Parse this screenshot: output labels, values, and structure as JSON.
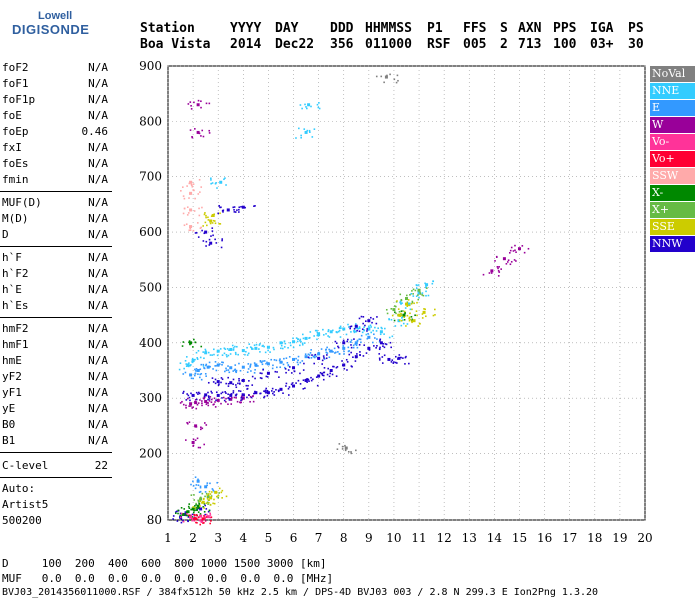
{
  "logo": {
    "top": "Lowell",
    "main": "DIGISONDE"
  },
  "header": {
    "labels": [
      "Station",
      "YYYY",
      "DAY",
      "DDD",
      "HHMMSS",
      "P1",
      "FFS",
      "S",
      "AXN",
      "PPS",
      "IGA",
      "PS"
    ],
    "values": [
      "Boa Vista",
      "2014",
      "Dec22",
      "356",
      "011000",
      "RSF",
      "005",
      "2",
      "713",
      "100",
      "03+",
      "30"
    ]
  },
  "params": {
    "group1": [
      {
        "name": "foF2",
        "value": "N/A"
      },
      {
        "name": "foF1",
        "value": "N/A"
      },
      {
        "name": "foF1p",
        "value": "N/A"
      },
      {
        "name": "foE",
        "value": "N/A"
      },
      {
        "name": "foEp",
        "value": "0.46"
      },
      {
        "name": "fxI",
        "value": "N/A"
      },
      {
        "name": "foEs",
        "value": "N/A"
      },
      {
        "name": "fmin",
        "value": "N/A"
      }
    ],
    "group2": [
      {
        "name": "MUF(D)",
        "value": "N/A"
      },
      {
        "name": "M(D)",
        "value": "N/A"
      },
      {
        "name": "D",
        "value": "N/A"
      }
    ],
    "group3": [
      {
        "name": "h`F",
        "value": "N/A"
      },
      {
        "name": "h`F2",
        "value": "N/A"
      },
      {
        "name": "h`E",
        "value": "N/A"
      },
      {
        "name": "h`Es",
        "value": "N/A"
      }
    ],
    "group4": [
      {
        "name": "hmF2",
        "value": "N/A"
      },
      {
        "name": "hmF1",
        "value": "N/A"
      },
      {
        "name": "hmE",
        "value": "N/A"
      },
      {
        "name": "yF2",
        "value": "N/A"
      },
      {
        "name": "yF1",
        "value": "N/A"
      },
      {
        "name": "yE",
        "value": "N/A"
      },
      {
        "name": "B0",
        "value": "N/A"
      },
      {
        "name": "B1",
        "value": "N/A"
      }
    ],
    "clevel": {
      "name": "C-level",
      "value": "22"
    },
    "auto": [
      "Auto:",
      "Artist5",
      "500200"
    ]
  },
  "legend": [
    {
      "label": "NoVal",
      "color": "#808080"
    },
    {
      "label": "NNE",
      "color": "#33ccff"
    },
    {
      "label": "E",
      "color": "#3399ff"
    },
    {
      "label": "W",
      "color": "#990099"
    },
    {
      "label": "Vo-",
      "color": "#ff3399"
    },
    {
      "label": "Vo+",
      "color": "#ff0033"
    },
    {
      "label": "SSW",
      "color": "#ffaaaa"
    },
    {
      "label": "X-",
      "color": "#008800"
    },
    {
      "label": "X+",
      "color": "#66bb44"
    },
    {
      "label": "SSE",
      "color": "#cccc00"
    },
    {
      "label": "NNW",
      "color": "#2200cc"
    }
  ],
  "chart_data": {
    "type": "scatter",
    "xlim": [
      1,
      20
    ],
    "ylim": [
      80,
      900
    ],
    "xticks": [
      1,
      2,
      3,
      4,
      5,
      6,
      7,
      8,
      9,
      10,
      11,
      12,
      13,
      14,
      15,
      16,
      17,
      18,
      19,
      20
    ],
    "yticks": [
      80,
      200,
      300,
      400,
      500,
      600,
      700,
      800,
      900
    ],
    "series": [
      {
        "name": "NNE",
        "points": [
          [
            1.8,
            360
          ],
          [
            2.0,
            368
          ],
          [
            2.5,
            382
          ],
          [
            3.0,
            385
          ],
          [
            3.5,
            388
          ],
          [
            4.0,
            386
          ],
          [
            4.5,
            390
          ],
          [
            5.0,
            392
          ],
          [
            5.5,
            400
          ],
          [
            6.0,
            402
          ],
          [
            6.5,
            408
          ],
          [
            7.0,
            415
          ],
          [
            7.5,
            420
          ],
          [
            8.0,
            425
          ],
          [
            8.5,
            428
          ],
          [
            9.0,
            425
          ],
          [
            9.5,
            420
          ],
          [
            10.2,
            440
          ],
          [
            10.6,
            470
          ],
          [
            11.0,
            490
          ],
          [
            11.3,
            505
          ],
          [
            6.6,
            830
          ],
          [
            6.5,
            780
          ],
          [
            3.1,
            690
          ]
        ]
      },
      {
        "name": "E",
        "points": [
          [
            1.9,
            342
          ],
          [
            2.2,
            350
          ],
          [
            2.6,
            356
          ],
          [
            3.0,
            360
          ],
          [
            3.5,
            355
          ],
          [
            4.0,
            356
          ],
          [
            4.5,
            360
          ],
          [
            5.0,
            362
          ],
          [
            5.5,
            365
          ],
          [
            6.0,
            370
          ],
          [
            6.5,
            375
          ],
          [
            7.0,
            380
          ],
          [
            7.5,
            385
          ],
          [
            8.0,
            390
          ],
          [
            8.5,
            400
          ],
          [
            9.0,
            410
          ],
          [
            2.2,
            150
          ],
          [
            2.5,
            140
          ]
        ]
      },
      {
        "name": "W",
        "points": [
          [
            1.9,
            290
          ],
          [
            2.1,
            292
          ],
          [
            2.5,
            294
          ],
          [
            3.0,
            296
          ],
          [
            3.5,
            298
          ],
          [
            4.0,
            300
          ],
          [
            2.2,
            830
          ],
          [
            2.2,
            780
          ],
          [
            2.1,
            250
          ],
          [
            2.0,
            220
          ],
          [
            13.9,
            530
          ],
          [
            14.4,
            552
          ],
          [
            15.0,
            570
          ]
        ]
      },
      {
        "name": "NNW",
        "points": [
          [
            2.0,
            305
          ],
          [
            2.5,
            306
          ],
          [
            3.0,
            305
          ],
          [
            3.5,
            305
          ],
          [
            4.0,
            306
          ],
          [
            4.5,
            310
          ],
          [
            5.0,
            310
          ],
          [
            5.5,
            316
          ],
          [
            6.0,
            322
          ],
          [
            6.5,
            332
          ],
          [
            7.0,
            340
          ],
          [
            7.5,
            350
          ],
          [
            8.0,
            360
          ],
          [
            8.5,
            375
          ],
          [
            9.0,
            390
          ],
          [
            9.5,
            400
          ],
          [
            9.8,
            370
          ],
          [
            10.2,
            372
          ],
          [
            3.0,
            330
          ],
          [
            3.5,
            328
          ],
          [
            4.0,
            332
          ],
          [
            5.0,
            345
          ],
          [
            6.0,
            355
          ],
          [
            7.0,
            372
          ],
          [
            8.0,
            400
          ],
          [
            8.5,
            430
          ],
          [
            9.0,
            440
          ],
          [
            2.3,
            100
          ],
          [
            1.7,
            90
          ],
          [
            1.5,
            85
          ],
          [
            2.5,
            600
          ],
          [
            3.4,
            640
          ],
          [
            4.0,
            645
          ],
          [
            2.7,
            580
          ]
        ]
      },
      {
        "name": "X-",
        "points": [
          [
            1.8,
            95
          ],
          [
            2.0,
            100
          ],
          [
            2.2,
            105
          ],
          [
            1.6,
            90
          ],
          [
            1.9,
            400
          ],
          [
            10.4,
            450
          ]
        ]
      },
      {
        "name": "X+",
        "points": [
          [
            2.3,
            118
          ],
          [
            2.6,
            122
          ],
          [
            10.0,
            460
          ],
          [
            10.5,
            480
          ],
          [
            11.0,
            495
          ]
        ]
      },
      {
        "name": "SSE",
        "points": [
          [
            2.4,
            112
          ],
          [
            2.7,
            120
          ],
          [
            2.9,
            130
          ],
          [
            2.7,
            620
          ],
          [
            2.8,
            630
          ],
          [
            10.2,
            450
          ],
          [
            10.5,
            470
          ],
          [
            10.8,
            440
          ],
          [
            11.2,
            455
          ]
        ]
      },
      {
        "name": "SSW",
        "points": [
          [
            1.9,
            610
          ],
          [
            1.9,
            640
          ],
          [
            1.9,
            670
          ],
          [
            1.9,
            690
          ]
        ]
      },
      {
        "name": "Vo-",
        "points": [
          [
            1.9,
            85
          ],
          [
            2.3,
            87
          ],
          [
            2.6,
            86
          ]
        ]
      },
      {
        "name": "Vo+",
        "points": [
          [
            2.1,
            82
          ],
          [
            2.4,
            82
          ]
        ]
      },
      {
        "name": "NoVal",
        "points": [
          [
            9.7,
            880
          ],
          [
            8.1,
            210
          ]
        ]
      }
    ]
  },
  "bottom": {
    "d_line": "D     100  200  400  600  800 1000 1500 3000 [km]",
    "muf_line": "MUF   0.0  0.0  0.0  0.0  0.0  0.0  0.0  0.0 [MHz]",
    "info_line": "BVJ03_2014356011000.RSF / 384fx512h 50 kHz 2.5 km / DPS-4D BVJ03 003 / 2.8 N 299.3 E Ion2Png 1.3.20"
  }
}
